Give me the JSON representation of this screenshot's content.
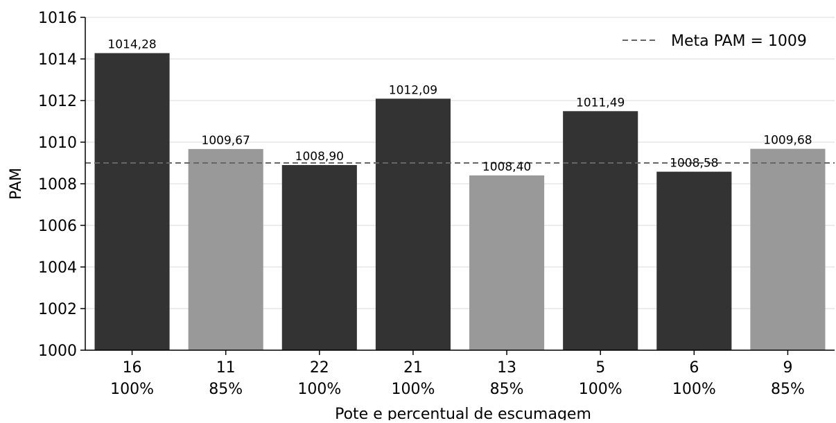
{
  "chart_data": {
    "type": "bar",
    "title": "",
    "xlabel": "Pote e percentual de escumagem",
    "ylabel": "PAM",
    "ylim": [
      1000,
      1016
    ],
    "yticks": [
      "1000",
      "1002",
      "1004",
      "1006",
      "1008",
      "1010",
      "1012",
      "1014",
      "1016"
    ],
    "ytick_values": [
      1000,
      1002,
      1004,
      1006,
      1008,
      1010,
      1012,
      1014,
      1016
    ],
    "grid": "horizontal",
    "categories": [
      {
        "pote": "16",
        "pct": "100%"
      },
      {
        "pote": "11",
        "pct": "85%"
      },
      {
        "pote": "22",
        "pct": "100%"
      },
      {
        "pote": "21",
        "pct": "100%"
      },
      {
        "pote": "13",
        "pct": "85%"
      },
      {
        "pote": "5",
        "pct": "100%"
      },
      {
        "pote": "6",
        "pct": "100%"
      },
      {
        "pote": "9",
        "pct": "85%"
      }
    ],
    "values": [
      1014.28,
      1009.67,
      1008.9,
      1012.09,
      1008.4,
      1011.49,
      1008.58,
      1009.68
    ],
    "value_labels": [
      "1014,28",
      "1009,67",
      "1008,90",
      "1012,09",
      "1008,40",
      "1011,49",
      "1008,58",
      "1009,68"
    ],
    "bar_colors": {
      "100%": "#333333",
      "85%": "#999999"
    },
    "reference_line": {
      "value": 1009,
      "label": "Meta PAM = 1009",
      "style": "dashed",
      "color": "#666666"
    },
    "legend_position": "top-right"
  }
}
